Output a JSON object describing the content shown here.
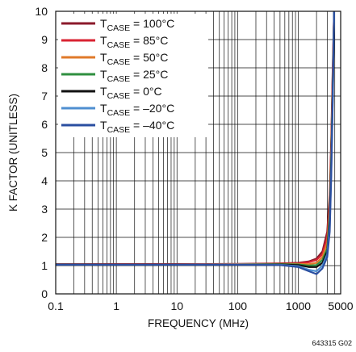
{
  "chart_data": {
    "type": "line",
    "xlabel": "FREQUENCY (MHz)",
    "ylabel": "K FACTOR  (UNITLESS)",
    "xscale": "log",
    "xlim": [
      0.1,
      5000
    ],
    "ylim": [
      0,
      10
    ],
    "x_ticks": [
      "0.1",
      "1",
      "10",
      "100",
      "1000",
      "5000"
    ],
    "y_ticks": [
      "0",
      "1",
      "2",
      "3",
      "4",
      "5",
      "6",
      "7",
      "8",
      "9",
      "10"
    ],
    "grid": true,
    "legend_position": "top-left",
    "note": "643315 G02",
    "series": [
      {
        "name_main": "T",
        "name_sub": "CASE",
        "name_rest": " = 100°C",
        "color": "#8b1a2b",
        "x": [
          0.1,
          1,
          10,
          100,
          500,
          1000,
          1500,
          2000,
          2500,
          3000,
          3300,
          3500,
          3700,
          3900
        ],
        "y": [
          1.05,
          1.05,
          1.05,
          1.06,
          1.08,
          1.1,
          1.15,
          1.25,
          1.5,
          2.2,
          3.5,
          5.5,
          8.0,
          10
        ]
      },
      {
        "name_main": "T",
        "name_sub": "CASE",
        "name_rest": " = 85°C",
        "color": "#d92332",
        "x": [
          0.1,
          1,
          10,
          100,
          500,
          1000,
          1500,
          2000,
          2500,
          3000,
          3300,
          3500,
          3700,
          3900
        ],
        "y": [
          1.04,
          1.05,
          1.05,
          1.05,
          1.07,
          1.08,
          1.12,
          1.2,
          1.4,
          2.0,
          3.2,
          5.2,
          7.8,
          10
        ]
      },
      {
        "name_main": "T",
        "name_sub": "CASE",
        "name_rest": " = 50°C",
        "color": "#e07a2a",
        "x": [
          0.1,
          1,
          10,
          100,
          500,
          1000,
          1500,
          2000,
          2500,
          3000,
          3300,
          3500,
          3700,
          3900
        ],
        "y": [
          1.04,
          1.04,
          1.04,
          1.05,
          1.06,
          1.06,
          1.05,
          1.1,
          1.3,
          1.8,
          3.0,
          5.0,
          7.5,
          10
        ]
      },
      {
        "name_main": "T",
        "name_sub": "CASE",
        "name_rest": " = 25°C",
        "color": "#2f8f3f",
        "x": [
          0.1,
          1,
          10,
          100,
          500,
          1000,
          1500,
          2000,
          2500,
          3000,
          3300,
          3500,
          3700,
          3900
        ],
        "y": [
          1.04,
          1.04,
          1.04,
          1.04,
          1.05,
          1.04,
          1.0,
          1.02,
          1.2,
          1.6,
          2.8,
          4.8,
          7.3,
          10
        ]
      },
      {
        "name_main": "T",
        "name_sub": "CASE",
        "name_rest": " = 0°C",
        "color": "#111111",
        "x": [
          0.1,
          1,
          10,
          100,
          500,
          1000,
          1500,
          2000,
          2500,
          3000,
          3300,
          3500,
          3700,
          3900
        ],
        "y": [
          1.04,
          1.04,
          1.04,
          1.04,
          1.04,
          1.02,
          0.95,
          0.95,
          1.1,
          1.5,
          2.6,
          4.6,
          7.1,
          10
        ]
      },
      {
        "name_main": "T",
        "name_sub": "CASE",
        "name_rest": " = –20°C",
        "color": "#4f8fd0",
        "x": [
          0.1,
          1,
          10,
          100,
          500,
          1000,
          1500,
          2000,
          2500,
          3000,
          3300,
          3500,
          3700,
          3900
        ],
        "y": [
          1.03,
          1.03,
          1.03,
          1.04,
          1.03,
          0.98,
          0.85,
          0.8,
          1.0,
          1.4,
          2.4,
          4.4,
          7.0,
          10
        ]
      },
      {
        "name_main": "T",
        "name_sub": "CASE",
        "name_rest": " = –40°C",
        "color": "#2a4ea0",
        "x": [
          0.1,
          1,
          10,
          100,
          500,
          1000,
          1500,
          2000,
          2500,
          3000,
          3300,
          3500,
          3700,
          3900
        ],
        "y": [
          1.03,
          1.03,
          1.03,
          1.03,
          1.02,
          0.95,
          0.8,
          0.7,
          0.9,
          1.3,
          2.2,
          4.2,
          6.8,
          10
        ]
      }
    ]
  }
}
